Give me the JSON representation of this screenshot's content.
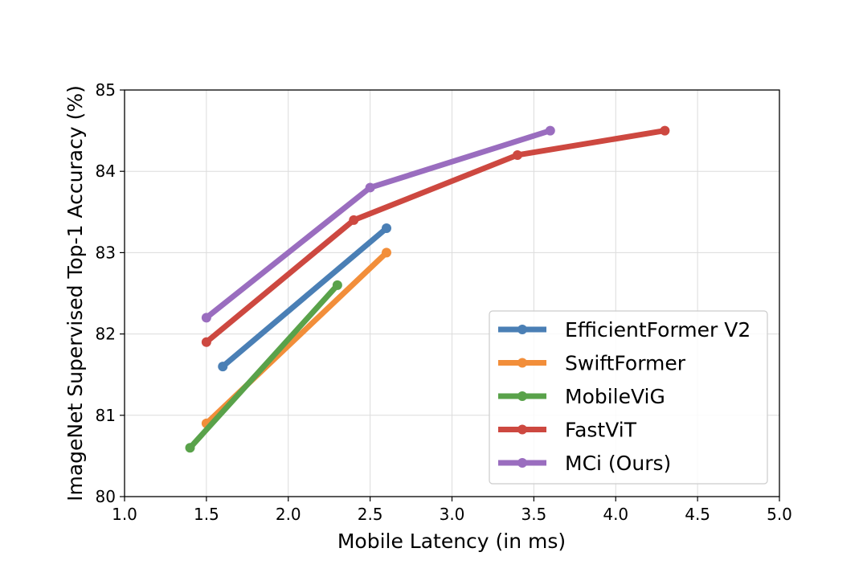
{
  "chart_data": {
    "type": "line",
    "title": "",
    "xlabel": "Mobile Latency (in ms)",
    "ylabel": "ImageNet Supervised Top-1 Accuracy (%)",
    "xlim": [
      1.0,
      5.0
    ],
    "ylim": [
      80,
      85
    ],
    "xticks": [
      "1.0",
      "1.5",
      "2.0",
      "2.5",
      "3.0",
      "3.5",
      "4.0",
      "4.5",
      "5.0"
    ],
    "yticks": [
      "80",
      "81",
      "82",
      "83",
      "84",
      "85"
    ],
    "grid": true,
    "legend_position": "lower-right",
    "series": [
      {
        "name": "EfficientFormer V2",
        "color": "#4a7fb5",
        "x": [
          1.6,
          2.6
        ],
        "y": [
          81.6,
          83.3
        ]
      },
      {
        "name": "SwiftFormer",
        "color": "#f28e3a",
        "x": [
          1.5,
          2.6
        ],
        "y": [
          80.9,
          83.0
        ]
      },
      {
        "name": "MobileViG",
        "color": "#59a24a",
        "x": [
          1.4,
          2.3
        ],
        "y": [
          80.6,
          82.6
        ]
      },
      {
        "name": "FastViT",
        "color": "#cd4840",
        "x": [
          1.5,
          2.4,
          3.4,
          4.3
        ],
        "y": [
          81.9,
          83.4,
          84.2,
          84.5
        ]
      },
      {
        "name": "MCi (Ours)",
        "color": "#9a6dbf",
        "x": [
          1.5,
          2.5,
          3.6
        ],
        "y": [
          82.2,
          83.8,
          84.5
        ]
      }
    ]
  }
}
